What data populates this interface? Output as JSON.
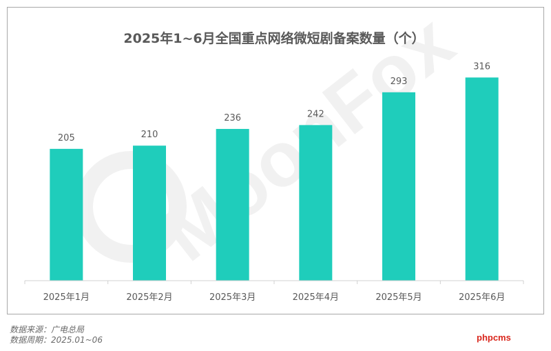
{
  "chart_data": {
    "type": "bar",
    "title": "2025年1~6月全国重点网络微短剧备案数量（个）",
    "categories": [
      "2025年1月",
      "2025年2月",
      "2025年3月",
      "2025年4月",
      "2025年5月",
      "2025年6月"
    ],
    "values": [
      205,
      210,
      236,
      242,
      293,
      316
    ],
    "ylim": [
      0,
      340
    ],
    "grid": false,
    "legend": "none",
    "bar_color": "#1fcdbb"
  },
  "watermark": "MoonFox",
  "footer": {
    "source": "数据来源：广电总局",
    "period": "数据周期：2025.01~06"
  },
  "site_mark": "phpcms"
}
